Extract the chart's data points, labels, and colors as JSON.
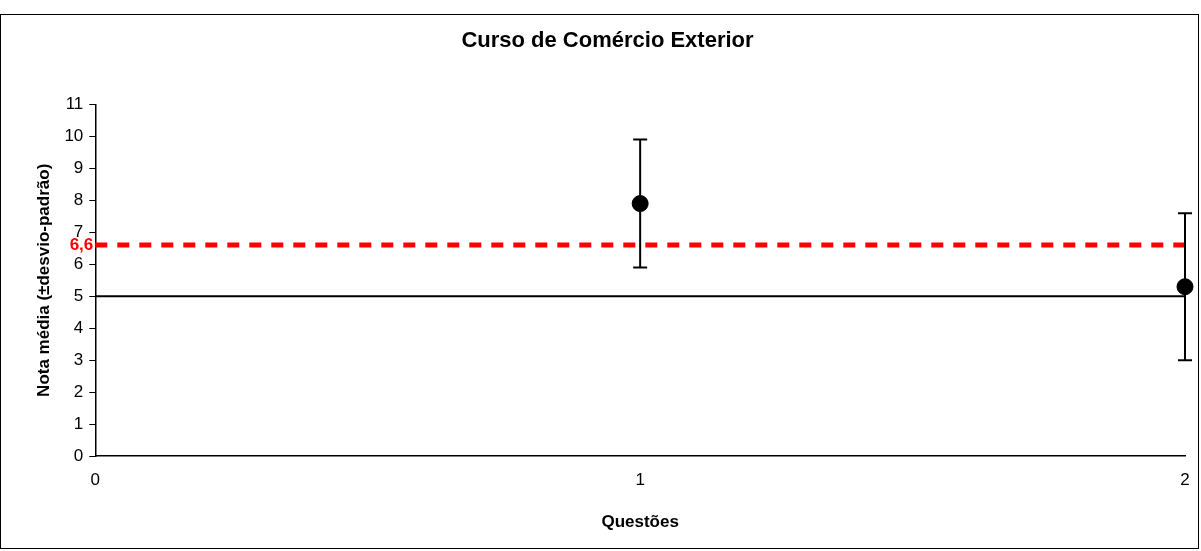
{
  "chart_data": {
    "type": "scatter",
    "title": "Curso de Comércio Exterior",
    "xlabel": "Questões",
    "ylabel": "Nota média (±desvio-padrão)",
    "x": [
      1,
      2
    ],
    "values": [
      7.9,
      5.3
    ],
    "errors": [
      2.0,
      2.3
    ],
    "color": "#000000",
    "marker": "circle",
    "xlim": [
      0,
      2
    ],
    "xticks": [
      0,
      1,
      2
    ],
    "ylim": [
      0,
      11
    ],
    "yticks": [
      0,
      1,
      2,
      3,
      4,
      5,
      6,
      7,
      8,
      9,
      10,
      11
    ],
    "grid": false,
    "legend": false,
    "ref_lines": [
      {
        "axis": "y",
        "value": 6.6,
        "label": "6,6",
        "color": "#ff0000",
        "line_style": "dashed"
      },
      {
        "axis": "y",
        "value": 5,
        "color": "#000000",
        "line_style": "solid"
      }
    ]
  }
}
